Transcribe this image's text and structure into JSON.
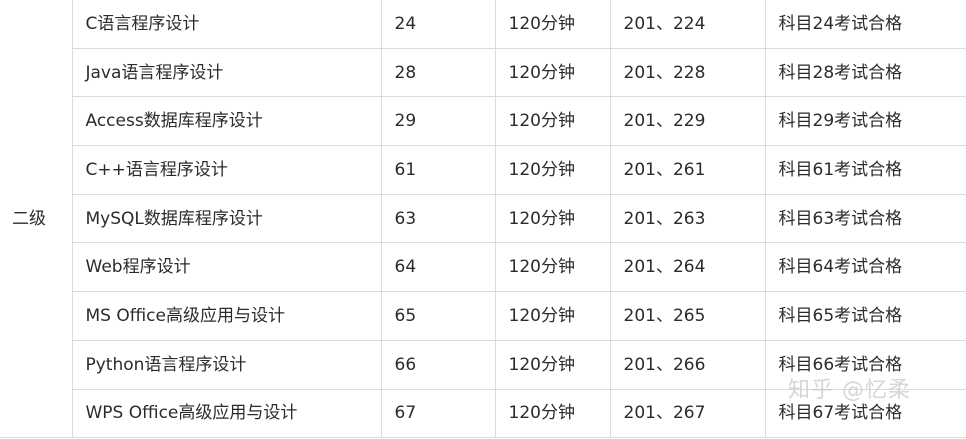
{
  "level": "二级",
  "rows": [
    {
      "subject": "C语言程序设计",
      "code": "24",
      "duration": "120分钟",
      "numbers": "201、224",
      "requirement": "科目24考试合格"
    },
    {
      "subject": "Java语言程序设计",
      "code": "28",
      "duration": "120分钟",
      "numbers": "201、228",
      "requirement": "科目28考试合格"
    },
    {
      "subject": "Access数据库程序设计",
      "code": "29",
      "duration": "120分钟",
      "numbers": "201、229",
      "requirement": "科目29考试合格"
    },
    {
      "subject": "C++语言程序设计",
      "code": "61",
      "duration": "120分钟",
      "numbers": "201、261",
      "requirement": "科目61考试合格"
    },
    {
      "subject": "MySQL数据库程序设计",
      "code": "63",
      "duration": "120分钟",
      "numbers": "201、263",
      "requirement": "科目63考试合格"
    },
    {
      "subject": "Web程序设计",
      "code": "64",
      "duration": "120分钟",
      "numbers": "201、264",
      "requirement": "科目64考试合格"
    },
    {
      "subject": "MS Office高级应用与设计",
      "code": "65",
      "duration": "120分钟",
      "numbers": "201、265",
      "requirement": "科目65考试合格"
    },
    {
      "subject": "Python语言程序设计",
      "code": "66",
      "duration": "120分钟",
      "numbers": "201、266",
      "requirement": "科目66考试合格"
    },
    {
      "subject": "WPS Office高级应用与设计",
      "code": "67",
      "duration": "120分钟",
      "numbers": "201、267",
      "requirement": "科目67考试合格"
    }
  ],
  "watermark": "知乎 @忆柔"
}
